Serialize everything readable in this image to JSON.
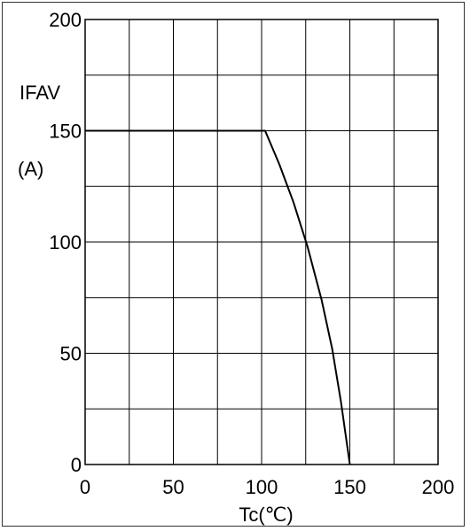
{
  "chart_data": {
    "type": "line",
    "title": "",
    "ylabel": "IFAV",
    "ylabel_unit": "(A)",
    "xlabel": "Tc(℃)",
    "xlim": [
      0,
      200
    ],
    "ylim": [
      0,
      200
    ],
    "x_ticks": [
      0,
      50,
      100,
      150,
      200
    ],
    "y_ticks": [
      0,
      50,
      100,
      150,
      200
    ],
    "x_grid_step": 25,
    "y_grid_step": 25,
    "grid": true,
    "series": [
      {
        "x": [
          0,
          102,
          110,
          118,
          126,
          134,
          140,
          145,
          150
        ],
        "y": [
          150,
          150,
          135,
          118,
          98,
          74,
          52,
          28,
          0
        ]
      }
    ]
  }
}
